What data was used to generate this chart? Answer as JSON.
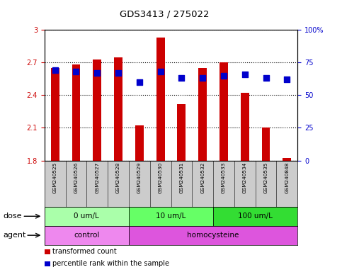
{
  "title": "GDS3413 / 275022",
  "samples": [
    "GSM240525",
    "GSM240526",
    "GSM240527",
    "GSM240528",
    "GSM240529",
    "GSM240530",
    "GSM240531",
    "GSM240532",
    "GSM240533",
    "GSM240534",
    "GSM240535",
    "GSM240848"
  ],
  "transformed_count": [
    2.65,
    2.68,
    2.73,
    2.75,
    2.12,
    2.93,
    2.32,
    2.65,
    2.7,
    2.42,
    2.1,
    1.82
  ],
  "percentile_rank": [
    69,
    68,
    67,
    67,
    60,
    68,
    63,
    63,
    65,
    66,
    63,
    62
  ],
  "bar_bottom": 1.8,
  "ylim_left": [
    1.8,
    3.0
  ],
  "yticks_left": [
    1.8,
    2.1,
    2.4,
    2.7,
    3.0
  ],
  "ylim_right": [
    0,
    100
  ],
  "yticks_right": [
    0,
    25,
    50,
    75,
    100
  ],
  "bar_color": "#cc0000",
  "dot_color": "#0000cc",
  "dose_groups": [
    {
      "label": "0 um/L",
      "start": 0,
      "end": 4,
      "color": "#aaffaa"
    },
    {
      "label": "10 um/L",
      "start": 4,
      "end": 8,
      "color": "#66ff66"
    },
    {
      "label": "100 um/L",
      "start": 8,
      "end": 12,
      "color": "#33dd33"
    }
  ],
  "agent_groups": [
    {
      "label": "control",
      "start": 0,
      "end": 4,
      "color": "#ee88ee"
    },
    {
      "label": "homocysteine",
      "start": 4,
      "end": 12,
      "color": "#dd55dd"
    }
  ],
  "dose_label": "dose",
  "agent_label": "agent",
  "legend_items": [
    {
      "label": "transformed count",
      "color": "#cc0000"
    },
    {
      "label": "percentile rank within the sample",
      "color": "#0000cc"
    }
  ],
  "background_color": "#ffffff",
  "tick_color_left": "#cc0000",
  "tick_color_right": "#0000cc",
  "bar_width": 0.4,
  "dot_size": 35,
  "xlabel_bg": "#cccccc"
}
